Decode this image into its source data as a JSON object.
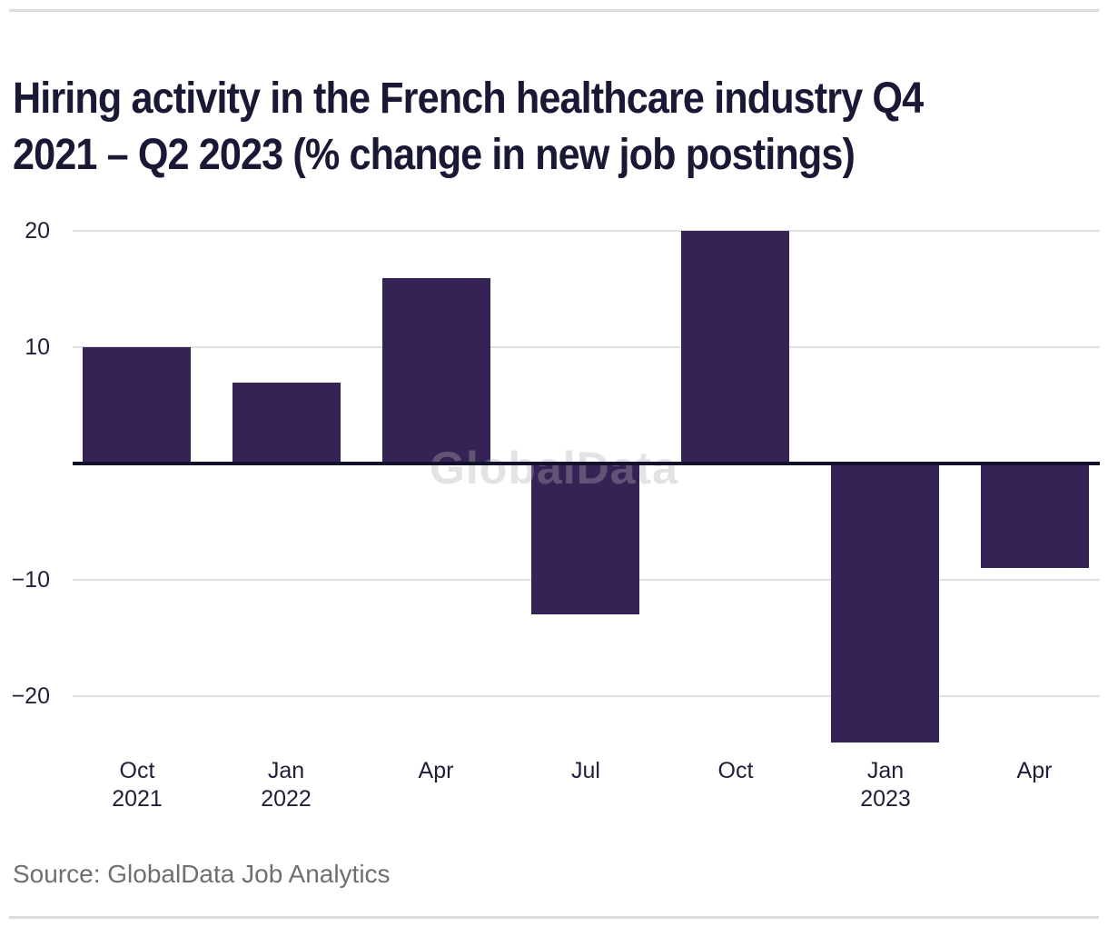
{
  "header": {
    "title_line1": "Hiring activity in the French healthcare industry Q4",
    "title_line2": "2021 – Q2 2023 (% change in new job postings)"
  },
  "watermark": {
    "text": "GlobalData"
  },
  "footer": {
    "source_text": "Source: GlobalData Job Analytics"
  },
  "colors": {
    "bar": "#362355",
    "title_text": "#191936",
    "tick_text": "#1f1f3a",
    "axis_line": "#12122b",
    "gridline": "#e0e0e0",
    "rule": "#dcdcdc",
    "source_text": "#6f6f6f",
    "watermark": "#b0b0b0",
    "background": "#ffffff"
  },
  "chart_data": {
    "type": "bar",
    "title": "Hiring activity in the French healthcare industry Q4 2021 – Q2 2023 (% change in new job postings)",
    "categories": [
      "Oct 2021",
      "Jan 2022",
      "Apr",
      "Jul",
      "Oct",
      "Jan 2023",
      "Apr"
    ],
    "x_tick_lines": [
      [
        "Oct",
        "2021"
      ],
      [
        "Jan",
        "2022"
      ],
      [
        "Apr"
      ],
      [
        "Jul"
      ],
      [
        "Oct"
      ],
      [
        "Jan",
        "2023"
      ],
      [
        "Apr"
      ]
    ],
    "values": [
      10,
      7,
      16,
      -13,
      20,
      -24,
      -9
    ],
    "xlabel": "",
    "ylabel": "",
    "ylim": [
      -26,
      22
    ],
    "yticks": [
      {
        "value": 20,
        "label": "20"
      },
      {
        "value": 10,
        "label": "10"
      },
      {
        "value": -10,
        "label": "−10"
      },
      {
        "value": -20,
        "label": "−20"
      }
    ],
    "grid": "horizontal-only",
    "legend": "none",
    "zero_axis": true,
    "series": [
      {
        "name": "% change in new job postings",
        "values": [
          10,
          7,
          16,
          -13,
          20,
          -24,
          -9
        ]
      }
    ]
  }
}
